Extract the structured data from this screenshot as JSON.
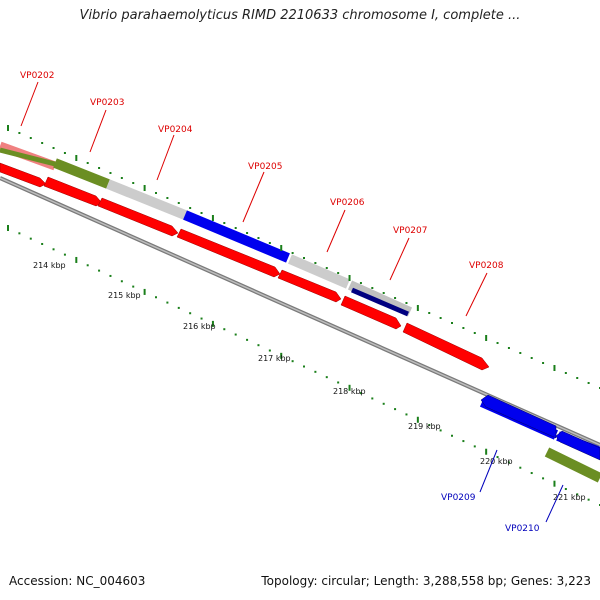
{
  "title": "Vibrio parahaemolyticus RIMD 2210633 chromosome I, complete ...",
  "footer": {
    "accession": "Accession: NC_004603",
    "summary": "Topology: circular; Length: 3,288,558 bp; Genes: 3,223"
  },
  "ticks": [
    "214 kbp",
    "215 kbp",
    "216 kbp",
    "217 kbp",
    "218 kbp",
    "219 kbp",
    "220 kbp",
    "221 kbp"
  ],
  "genes": [
    {
      "label": "VP0202",
      "color": "#dd0000"
    },
    {
      "label": "VP0203",
      "color": "#dd0000"
    },
    {
      "label": "VP0204",
      "color": "#dd0000"
    },
    {
      "label": "VP0205",
      "color": "#dd0000"
    },
    {
      "label": "VP0206",
      "color": "#dd0000"
    },
    {
      "label": "VP0207",
      "color": "#dd0000"
    },
    {
      "label": "VP0208",
      "color": "#dd0000"
    },
    {
      "label": "VP0209",
      "color": "#0000bb"
    },
    {
      "label": "VP0210",
      "color": "#0000bb"
    }
  ],
  "colors": {
    "forward_strand": "#ff0000",
    "reverse_strand": "#0000ff",
    "cog_olive": "#6b8e23",
    "cog_gray": "#c8c8c8",
    "cog_blue": "#0000ff",
    "cog_pink": "#f08080",
    "cog_navy": "#000080",
    "backbone": "#808080",
    "tick": "#1a7f1a"
  }
}
